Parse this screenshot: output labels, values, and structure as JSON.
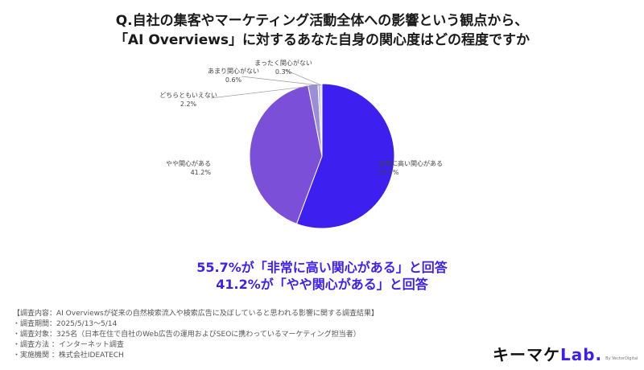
{
  "title": {
    "line1": "Q.自社の集客やマーケティング活動全体への影響という観点から、",
    "line2": "「AI Overviews」に対するあなた自身の関心度はどの程度ですか"
  },
  "chart_data": {
    "type": "pie",
    "slices": [
      {
        "label": "非常に高い関心がある",
        "value": 55.7,
        "value_label": "55.7%",
        "color": "#3d1ff0"
      },
      {
        "label": "やや関心がある",
        "value": 41.2,
        "value_label": "41.2%",
        "color": "#7b4fd8"
      },
      {
        "label": "どちらともいえない",
        "value": 2.2,
        "value_label": "2.2%",
        "color": "#9a8fd6"
      },
      {
        "label": "あまり関心がない",
        "value": 0.6,
        "value_label": "0.6%",
        "color": "#c2bde6"
      },
      {
        "label": "まったく関心がない",
        "value": 0.3,
        "value_label": "0.3%",
        "color": "#dcd9ef"
      }
    ],
    "start": "top",
    "direction": "clockwise"
  },
  "highlight": {
    "line1": "55.7%が「非常に高い関心がある」と回答",
    "line2": "41.2%が「やや関心がある」と回答"
  },
  "footnotes": [
    "【調査内容：AI Overviewsが従来の自然検索流入や検索広告に及ぼしていると思われる影響に関する調査結果】",
    "・調査期間：2025/5/13〜5/14",
    "・調査対象：325名（日本在住で自社のWeb広告の運用およびSEOに携わっているマーケティング担当者）",
    "・調査方法 ：インターネット調査",
    "・実施機関 ：株式会社IDEATECH"
  ],
  "logo": {
    "main": "キーマケ",
    "accent": "Lab.",
    "sub": "By VectorDigital"
  }
}
